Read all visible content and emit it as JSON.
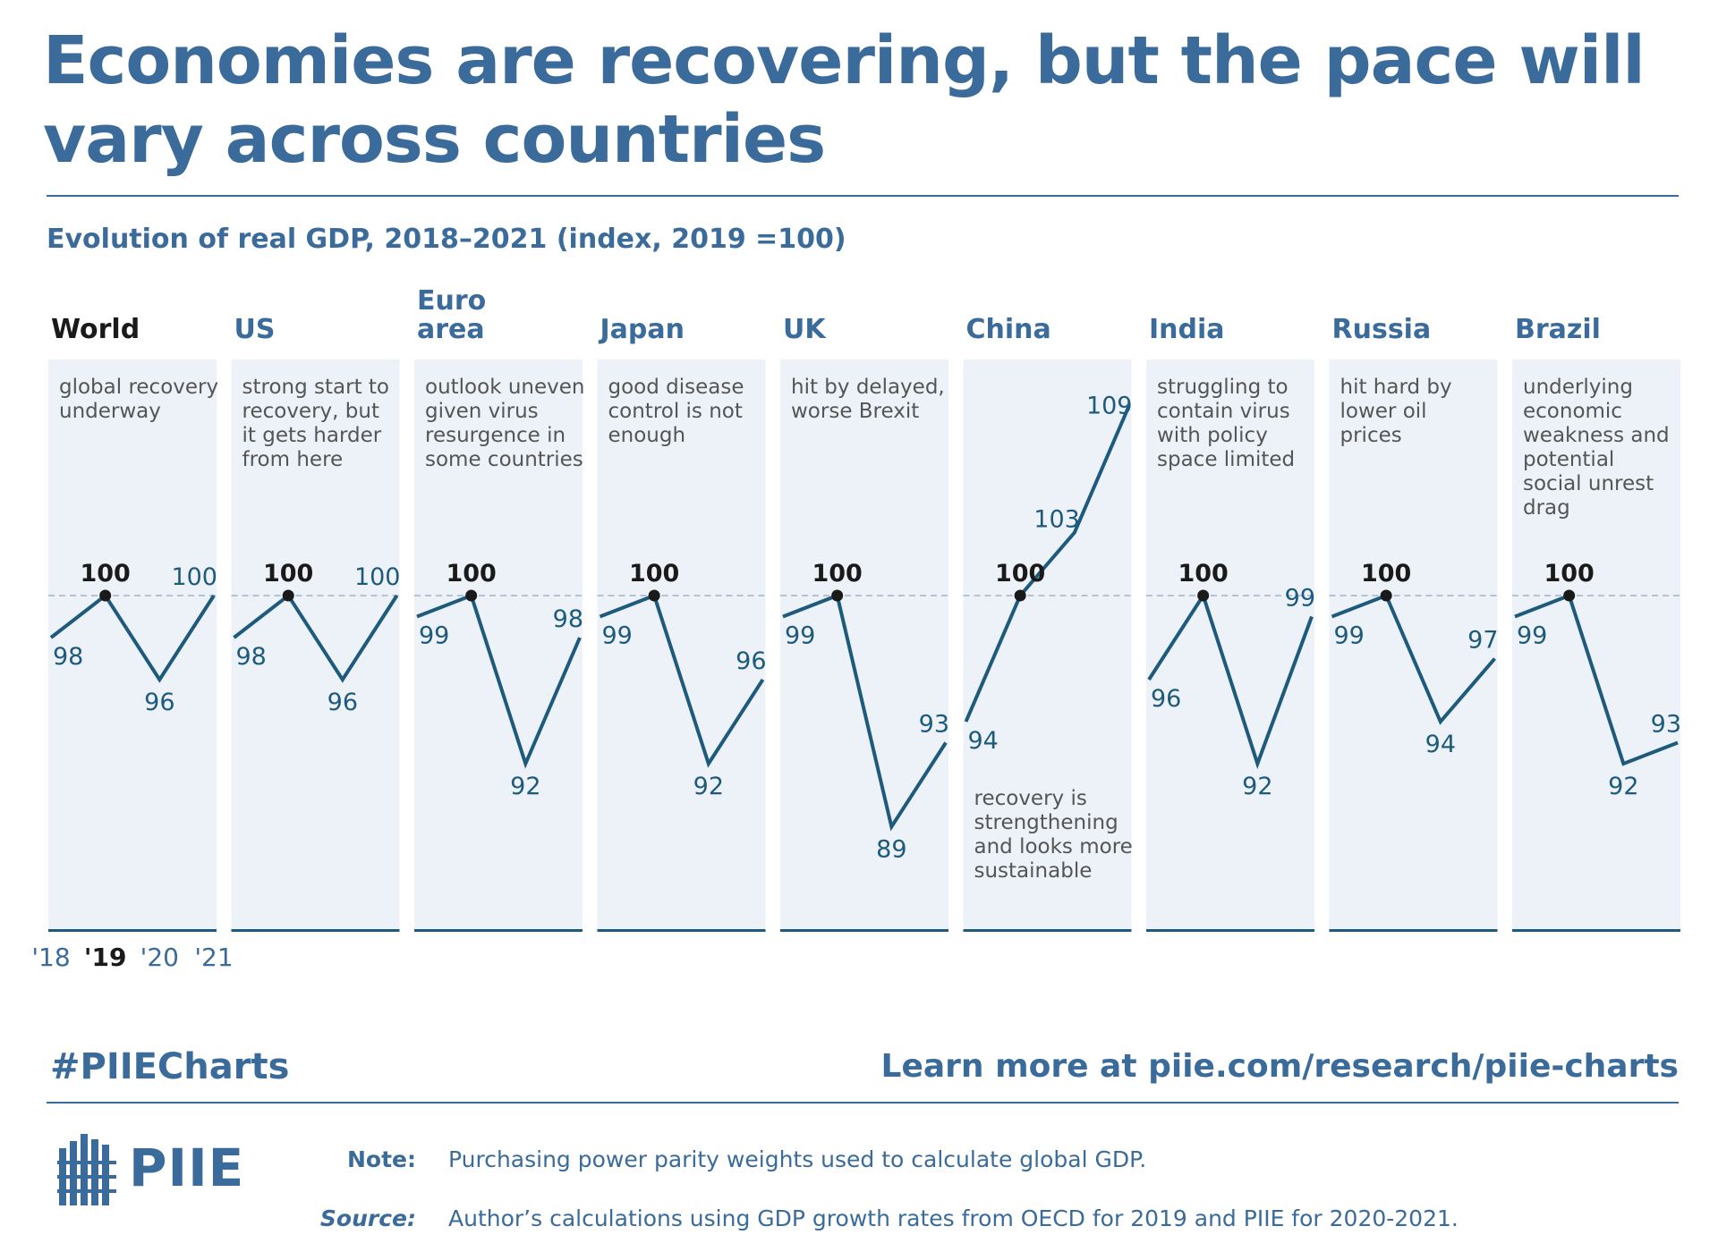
{
  "title": "Economies are recovering, but the pace will vary across countries",
  "subtitle": "Evolution of real GDP, 2018–2021 (index, 2019 =100)",
  "colors": {
    "accent": "#3a6b9a",
    "line": "#1e5a7c",
    "panel": "#edf2f8",
    "dark": "#1a1a1a",
    "grey_text": "#555555"
  },
  "chart_data": {
    "type": "line",
    "categories": [
      "'18",
      "'19",
      "'20",
      "'21"
    ],
    "reference_line": 100,
    "ylim": [
      87,
      110
    ],
    "series": [
      {
        "name": "World",
        "values": [
          98,
          100,
          96,
          100
        ],
        "note": "global recovery underway",
        "labels": [
          "98",
          "100",
          "96",
          "100"
        ]
      },
      {
        "name": "US",
        "values": [
          98,
          100,
          96,
          100
        ],
        "note": "strong start to recovery, but it gets harder from here",
        "labels": [
          "98",
          "100",
          "96",
          "100"
        ]
      },
      {
        "name": "Euro area",
        "values": [
          99,
          100,
          92,
          98
        ],
        "note": "outlook uneven given virus resurgence in some countries",
        "labels": [
          "99",
          "100",
          "92",
          "98"
        ]
      },
      {
        "name": "Japan",
        "values": [
          99,
          100,
          92,
          96
        ],
        "note": "good disease control is not enough",
        "labels": [
          "99",
          "100",
          "92",
          "96"
        ]
      },
      {
        "name": "UK",
        "values": [
          99,
          100,
          89,
          93
        ],
        "note": "hit by delayed, worse Brexit",
        "labels": [
          "99",
          "100",
          "89",
          "93"
        ]
      },
      {
        "name": "China",
        "values": [
          94,
          100,
          103,
          109
        ],
        "note": "recovery is strengthening and looks more sustainable",
        "labels": [
          "94",
          "100",
          "103",
          "109"
        ]
      },
      {
        "name": "India",
        "values": [
          96,
          100,
          92,
          99
        ],
        "note": "struggling to contain virus with policy space limited",
        "labels": [
          "96",
          "100",
          "92",
          "99"
        ]
      },
      {
        "name": "Russia",
        "values": [
          99,
          100,
          94,
          97
        ],
        "note": "hit hard by lower oil prices",
        "labels": [
          "99",
          "100",
          "94",
          "97"
        ]
      },
      {
        "name": "Brazil",
        "values": [
          99,
          100,
          92,
          93
        ],
        "note": "underlying economic weakness and potential social unrest drag",
        "labels": [
          "99",
          "100",
          "92",
          "93"
        ]
      }
    ]
  },
  "footer": {
    "hashtag": "#PIIECharts",
    "learn_more": "Learn more at piie.com/research/piie-charts",
    "logo_text": "PIIE",
    "note_label": "Note:",
    "note_text": "Purchasing power parity weights used to calculate global GDP.",
    "source_label": "Source:",
    "source_text": "Author’s calculations using GDP growth rates from OECD for 2019 and PIIE for 2020-2021."
  }
}
